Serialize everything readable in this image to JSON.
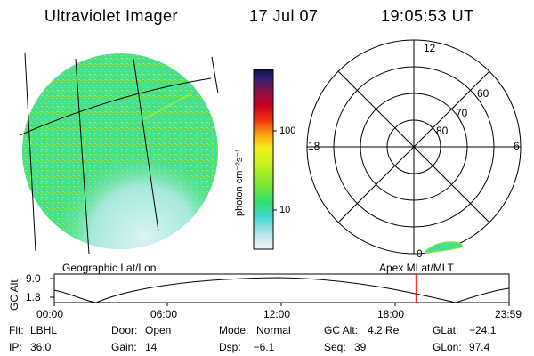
{
  "header": {
    "instrument": "Ultraviolet Imager",
    "date": "17 Jul 07",
    "time": "19:05:53 UT"
  },
  "colorbar": {
    "unit_label": "photon cm⁻²s⁻¹",
    "ticks": [
      "100",
      "10"
    ],
    "scale": "log"
  },
  "polar_plot": {
    "mlt_labels": {
      "top": "12",
      "left": "18",
      "right": "6",
      "bottom": "0"
    },
    "lat_labels": [
      "60",
      "70",
      "80"
    ]
  },
  "panels": {
    "left_caption": "Geographic Lat/Lon",
    "right_caption": "Apex MLat/MLT"
  },
  "altitude_plot": {
    "ylabel": "GC Alt",
    "yticks": [
      "9.0",
      "1.8"
    ],
    "xticks": [
      "00:00",
      "06:00",
      "12:00",
      "18:00",
      "23:59"
    ],
    "marker_time": "19:05",
    "marker_color": "#ff0000"
  },
  "status": {
    "row1": [
      {
        "key": "Flt:",
        "val": "LBHL"
      },
      {
        "key": "Door:",
        "val": "Open"
      },
      {
        "key": "Mode:",
        "val": "Normal"
      },
      {
        "key": "GC Alt:",
        "val": "4.2 Re"
      },
      {
        "key": "GLat:",
        "val": "−24.1"
      }
    ],
    "row2": [
      {
        "key": "IP:",
        "val": "36.0"
      },
      {
        "key": "Gain:",
        "val": "14"
      },
      {
        "key": "Dsp:",
        "val": "  −6.1"
      },
      {
        "key": "Seq:",
        "val": "39"
      },
      {
        "key": "GLon:",
        "val": "97.4"
      }
    ]
  },
  "colors": {
    "earth_disk": "#46e08a",
    "speckle": "#8ee838",
    "haze": "#cfeff0",
    "oval": "#46e08a"
  }
}
